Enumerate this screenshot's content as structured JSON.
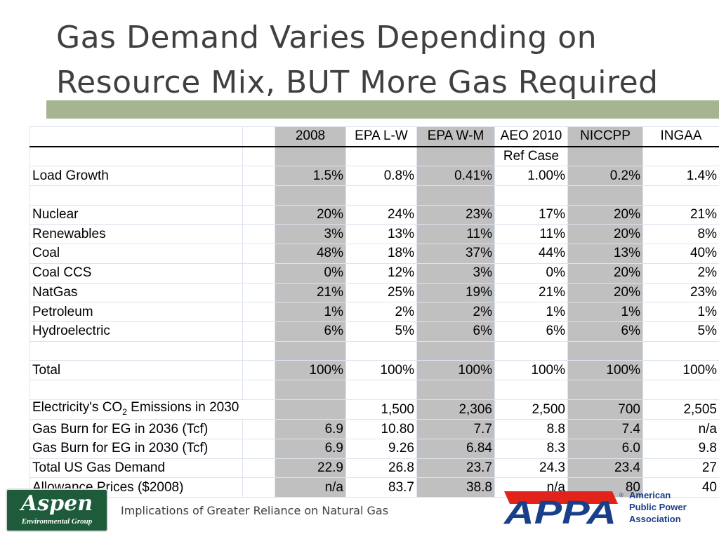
{
  "title": "Gas Demand Varies Depending on Resource Mix, BUT More Gas Required",
  "footer_text": "Implications of Greater Reliance on Natural Gas",
  "aspen_logo": {
    "name": "Aspen",
    "subtitle": "Environmental Group"
  },
  "appa_logo": {
    "wordmark": "APPA",
    "name": "American Public Power Association"
  },
  "colors": {
    "title_bar": "#a5b592",
    "shaded_column": "#c0c0c0",
    "aspen_green": "#1e5b3b",
    "appa_blue": "#1a3f8a",
    "appa_red": "#e2231a"
  },
  "table": {
    "columns": [
      "2008",
      "EPA L-W",
      "EPA W-M",
      "AEO 2010",
      "NICCPP",
      "INGAA"
    ],
    "rows": [
      {
        "label": "",
        "values": [
          "",
          "",
          "",
          "Ref Case",
          "",
          ""
        ]
      },
      {
        "label": "Load Growth",
        "values": [
          "1.5%",
          "0.8%",
          "0.41%",
          "1.00%",
          "0.2%",
          "1.4%"
        ]
      },
      {
        "label": "",
        "values": [
          "",
          "",
          "",
          "",
          "",
          ""
        ]
      },
      {
        "label": "Nuclear",
        "values": [
          "20%",
          "24%",
          "23%",
          "17%",
          "20%",
          "21%"
        ]
      },
      {
        "label": "Renewables",
        "values": [
          "3%",
          "13%",
          "11%",
          "11%",
          "20%",
          "8%"
        ]
      },
      {
        "label": "Coal",
        "values": [
          "48%",
          "18%",
          "37%",
          "44%",
          "13%",
          "40%"
        ]
      },
      {
        "label": "Coal CCS",
        "values": [
          "0%",
          "12%",
          "3%",
          "0%",
          "20%",
          "2%"
        ]
      },
      {
        "label": "NatGas",
        "values": [
          "21%",
          "25%",
          "19%",
          "21%",
          "20%",
          "23%"
        ]
      },
      {
        "label": "Petroleum",
        "values": [
          "1%",
          "2%",
          "2%",
          "1%",
          "1%",
          "1%"
        ]
      },
      {
        "label": "Hydroelectric",
        "values": [
          "6%",
          "5%",
          "6%",
          "6%",
          "6%",
          "5%"
        ]
      },
      {
        "label": "",
        "values": [
          "",
          "",
          "",
          "",
          "",
          ""
        ]
      },
      {
        "label": "Total",
        "values": [
          "100%",
          "100%",
          "100%",
          "100%",
          "100%",
          "100%"
        ]
      },
      {
        "label": "",
        "values": [
          "",
          "",
          "",
          "",
          "",
          ""
        ]
      },
      {
        "label_pre": "Electricity's CO",
        "label_sub": "2",
        "label_post": " Emissions in 2030",
        "values": [
          "",
          "1,500",
          "2,306",
          "2,500",
          "700",
          "2,505"
        ]
      },
      {
        "label": "Gas Burn for EG in 2036 (Tcf)",
        "values": [
          "6.9",
          "10.80",
          "7.7",
          "8.8",
          "7.4",
          "n/a"
        ]
      },
      {
        "label": "Gas Burn for EG in 2030 (Tcf)",
        "values": [
          "6.9",
          "9.26",
          "6.84",
          "8.3",
          "6.0",
          "9.8"
        ]
      },
      {
        "label": "Total US Gas Demand",
        "values": [
          "22.9",
          "26.8",
          "23.7",
          "24.3",
          "23.4",
          "27"
        ]
      },
      {
        "label": "Allowance Prices ($2008)",
        "values": [
          "n/a",
          "83.7",
          "38.8",
          "n/a",
          "80",
          "40"
        ]
      }
    ]
  }
}
